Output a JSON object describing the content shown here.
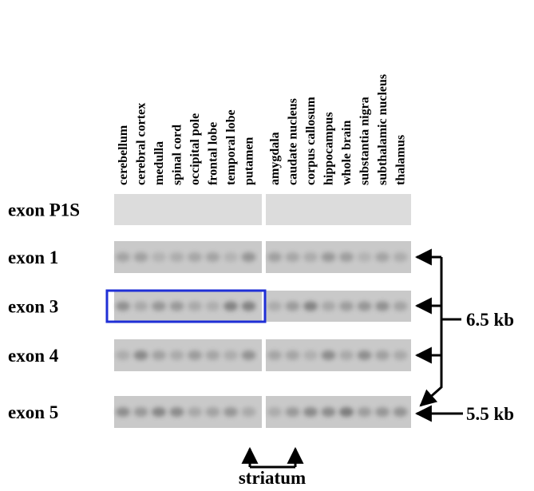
{
  "tissues": [
    "cerebellum",
    "cerebral cortex",
    "medulla",
    "spinal cord",
    "occipital pole",
    "frontal lobe",
    "temporal lobe",
    "putamen",
    "amygdala",
    "caudate nucleus",
    "corpus callosum",
    "hippocampus",
    "whole brain",
    "substantia nigra",
    "subthalamic nucleus",
    "thalamus"
  ],
  "rows": [
    {
      "label": "exon P1S"
    },
    {
      "label": "exon 1"
    },
    {
      "label": "exon 3"
    },
    {
      "label": "exon 4"
    },
    {
      "label": "exon 5"
    }
  ],
  "size_labels": [
    "6.5 kb",
    "5.5 kb"
  ],
  "bracket_label": "striatum"
}
